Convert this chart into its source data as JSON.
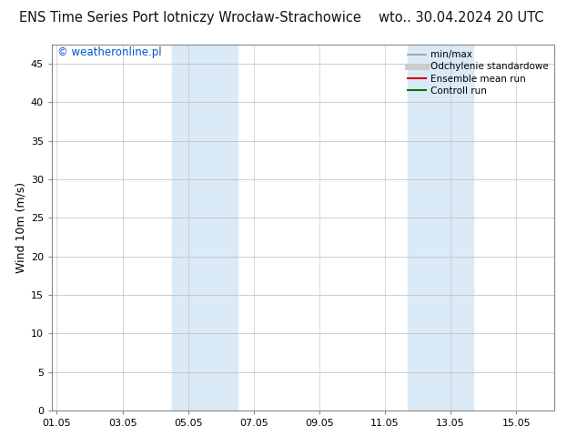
{
  "title": "ENS Time Series Port lotniczy Wrocław-Strachowice",
  "title_right": "wto.. 30.04.2024 20 UTC",
  "ylabel": "Wind 10m (m/s)",
  "watermark": "© weatheronline.pl",
  "watermark_color": "#0055cc",
  "background_color": "#ffffff",
  "plot_bg_color": "#ffffff",
  "ylim": [
    0,
    47.5
  ],
  "yticks": [
    0,
    5,
    10,
    15,
    20,
    25,
    30,
    35,
    40,
    45
  ],
  "xtick_labels": [
    "01.05",
    "03.05",
    "05.05",
    "07.05",
    "09.05",
    "11.05",
    "13.05",
    "15.05"
  ],
  "xtick_positions": [
    0,
    2,
    4,
    6,
    8,
    10,
    12,
    14
  ],
  "xlim": [
    -0.15,
    15.15
  ],
  "shaded_bands": [
    {
      "x_start": 3.5,
      "x_end": 5.5,
      "color": "#dbeaf7"
    },
    {
      "x_start": 10.7,
      "x_end": 12.7,
      "color": "#dbeaf7"
    }
  ],
  "grid_color": "#bbbbbb",
  "border_color": "#888888",
  "legend_items": [
    {
      "label": "min/max",
      "color": "#999999",
      "linestyle": "-",
      "linewidth": 1.2
    },
    {
      "label": "Odchylenie standardowe",
      "color": "#cccccc",
      "linestyle": "-",
      "linewidth": 5
    },
    {
      "label": "Ensemble mean run",
      "color": "#cc0000",
      "linestyle": "-",
      "linewidth": 1.5
    },
    {
      "label": "Controll run",
      "color": "#007700",
      "linestyle": "-",
      "linewidth": 1.5
    }
  ],
  "title_fontsize": 10.5,
  "axis_label_fontsize": 9,
  "tick_fontsize": 8,
  "legend_fontsize": 7.5,
  "watermark_fontsize": 8.5
}
